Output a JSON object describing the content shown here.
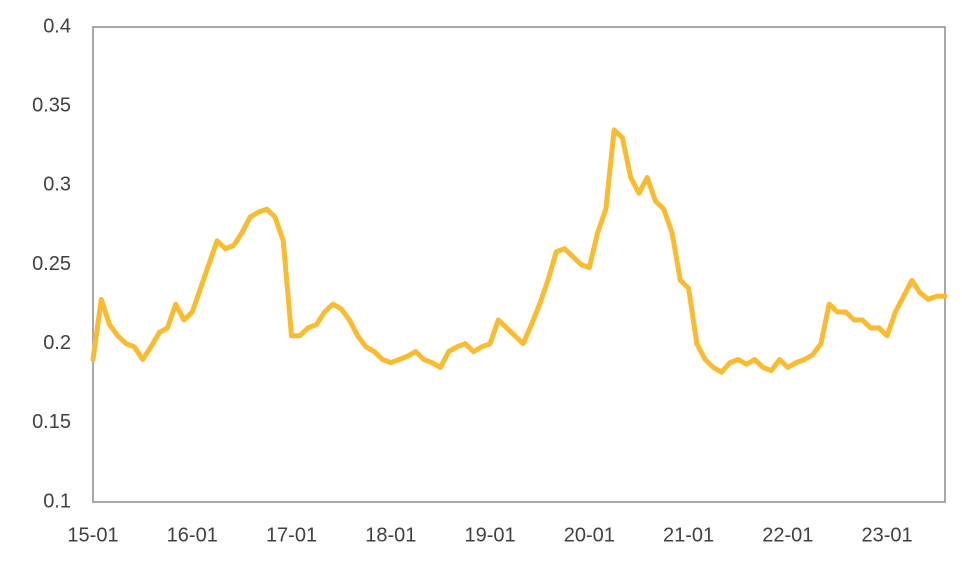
{
  "chart_data": {
    "type": "line",
    "categories": [
      "15-01",
      null,
      null,
      null,
      null,
      null,
      null,
      null,
      null,
      null,
      null,
      null,
      "16-01",
      null,
      null,
      null,
      null,
      null,
      null,
      null,
      null,
      null,
      null,
      null,
      "17-01",
      null,
      null,
      null,
      null,
      null,
      null,
      null,
      null,
      null,
      null,
      null,
      "18-01",
      null,
      null,
      null,
      null,
      null,
      null,
      null,
      null,
      null,
      null,
      null,
      "19-01",
      null,
      null,
      null,
      null,
      null,
      null,
      null,
      null,
      null,
      null,
      null,
      "20-01",
      null,
      null,
      null,
      null,
      null,
      null,
      null,
      null,
      null,
      null,
      null,
      "21-01",
      null,
      null,
      null,
      null,
      null,
      null,
      null,
      null,
      null,
      null,
      null,
      "22-01",
      null,
      null,
      null,
      null,
      null,
      null,
      null,
      null,
      null,
      null,
      null,
      "23-01",
      null,
      null,
      null,
      null,
      null,
      null,
      null
    ],
    "values": [
      0.19,
      0.228,
      0.212,
      0.205,
      0.2,
      0.198,
      0.19,
      0.198,
      0.207,
      0.21,
      0.225,
      0.215,
      0.22,
      0.235,
      0.25,
      0.265,
      0.26,
      0.262,
      0.27,
      0.28,
      0.283,
      0.285,
      0.28,
      0.265,
      0.205,
      0.205,
      0.21,
      0.212,
      0.22,
      0.225,
      0.222,
      0.215,
      0.205,
      0.198,
      0.195,
      0.19,
      0.188,
      0.19,
      0.192,
      0.195,
      0.19,
      0.188,
      0.185,
      0.195,
      0.198,
      0.2,
      0.195,
      0.198,
      0.2,
      0.215,
      0.21,
      0.205,
      0.2,
      0.212,
      0.225,
      0.24,
      0.258,
      0.26,
      0.255,
      0.25,
      0.248,
      0.27,
      0.285,
      0.335,
      0.33,
      0.305,
      0.295,
      0.305,
      0.29,
      0.285,
      0.27,
      0.24,
      0.235,
      0.2,
      0.19,
      0.185,
      0.182,
      0.188,
      0.19,
      0.187,
      0.19,
      0.185,
      0.183,
      0.19,
      0.185,
      0.188,
      0.19,
      0.193,
      0.2,
      0.225,
      0.22,
      0.22,
      0.215,
      0.215,
      0.21,
      0.21,
      0.205,
      0.22,
      0.23,
      0.24,
      0.232,
      0.228,
      0.23,
      0.23
    ],
    "color": "#fbbb2f",
    "ylim": [
      0.1,
      0.4
    ],
    "yticks": [
      0.1,
      0.15,
      0.2,
      0.25,
      0.3,
      0.35,
      0.4
    ],
    "grid": false
  }
}
